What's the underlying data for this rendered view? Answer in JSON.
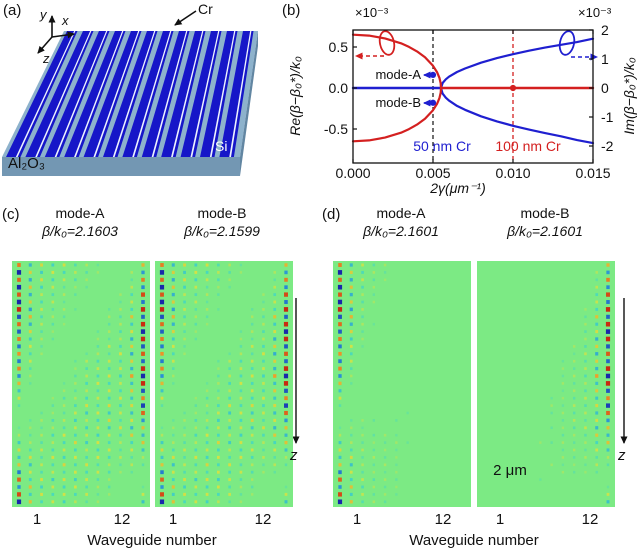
{
  "panel_a": {
    "tag": "(a)",
    "axis_x": "x",
    "axis_y": "y",
    "axis_z": "z",
    "cr": "Cr",
    "si": "Si",
    "substrate": "Al₂O₃",
    "colors": {
      "waveguide": "#1616c8",
      "slab_top": "#8db2cc",
      "slab_front": "#7397b3",
      "slab_side": "#6286a2",
      "ridge_line": "#eef2ff"
    }
  },
  "panel_b": {
    "tag": "(b)",
    "left_exponent": "×10⁻³",
    "right_exponent": "×10⁻³",
    "ylabel_left": "Re(β−β₀*)/k₀",
    "ylabel_right": "Im(β−β₀*)/k₀",
    "xlabel": "2γ(μm⁻¹)",
    "xticks": [
      "0.000",
      "0.005",
      "0.010",
      "0.015"
    ],
    "yticks_left": [
      "0.5",
      "0.0",
      "-0.5"
    ],
    "yticks_right": [
      "2",
      "1",
      "0",
      "-1",
      "-2"
    ],
    "mode_a": "mode-A",
    "mode_b": "mode-B",
    "label_50nm": "50 nm Cr",
    "label_100nm": "100 nm Cr"
  },
  "panel_c": {
    "tag": "(c)",
    "mode_a": "mode-A",
    "beta_a": "β/k₀=2.1603",
    "mode_b": "mode-B",
    "beta_b": "β/k₀=2.1599",
    "tick_1a": "1",
    "tick_12a": "12",
    "tick_1b": "1",
    "tick_12b": "12",
    "xlabel": "Waveguide number",
    "z": "z"
  },
  "panel_d": {
    "tag": "(d)",
    "mode_a": "mode-A",
    "beta_a": "β/k₀=2.1601",
    "mode_b": "mode-B",
    "beta_b": "β/k₀=2.1601",
    "tick_1a": "1",
    "tick_12a": "12",
    "tick_1b": "1",
    "tick_12b": "12",
    "xlabel": "Waveguide number",
    "z": "z",
    "scalebar": "2 μm"
  },
  "chart_data": {
    "type": "line",
    "title": "",
    "xlabel": "2γ(μm⁻¹)",
    "ylabel_left": "Re(β−β₀*)/k₀, units of 10⁻³",
    "ylabel_right": "Im(β−β₀*)/k₀, units of 10⁻³",
    "xlim": [
      0,
      0.015
    ],
    "ylim_left": [
      -0.91,
      0.7
    ],
    "ylim_right": [
      -2.55,
      2.0
    ],
    "grid": false,
    "exceptional_point_x": 0.0055,
    "colors": {
      "re": "#d42020",
      "im": "#1f1fd0"
    },
    "series": [
      {
        "id": "re_up",
        "name": "Re upper branch",
        "axis": "left",
        "color": "#d42020",
        "points": [
          [
            0,
            0.65
          ],
          [
            0.001,
            0.639
          ],
          [
            0.002,
            0.605
          ],
          [
            0.003,
            0.545
          ],
          [
            0.0035,
            0.501
          ],
          [
            0.004,
            0.446
          ],
          [
            0.0045,
            0.374
          ],
          [
            0.005,
            0.271
          ],
          [
            0.00525,
            0.194
          ],
          [
            0.0054,
            0.124
          ],
          [
            0.00548,
            0.056
          ],
          [
            0.0055,
            0
          ]
        ]
      },
      {
        "id": "re_dn",
        "name": "Re lower branch",
        "axis": "left",
        "color": "#d42020",
        "points": [
          [
            0,
            -0.65
          ],
          [
            0.001,
            -0.639
          ],
          [
            0.002,
            -0.605
          ],
          [
            0.003,
            -0.545
          ],
          [
            0.0035,
            -0.501
          ],
          [
            0.004,
            -0.446
          ],
          [
            0.0045,
            -0.374
          ],
          [
            0.005,
            -0.271
          ],
          [
            0.00525,
            -0.194
          ],
          [
            0.0054,
            -0.124
          ],
          [
            0.00548,
            -0.056
          ],
          [
            0.0055,
            0
          ]
        ]
      },
      {
        "id": "re_flat",
        "name": "Re after EP (degenerate, 0)",
        "axis": "left",
        "color": "#d42020",
        "points": [
          [
            0.0055,
            0
          ],
          [
            0.015,
            0
          ]
        ]
      },
      {
        "id": "im_flat",
        "name": "Im before EP (0)",
        "axis": "right",
        "color": "#1f1fd0",
        "points": [
          [
            0,
            0
          ],
          [
            0.0055,
            0
          ]
        ]
      },
      {
        "id": "im_up",
        "name": "Im upper branch",
        "axis": "right",
        "color": "#1f1fd0",
        "points": [
          [
            0.0055,
            0
          ],
          [
            0.0056,
            0.174
          ],
          [
            0.0058,
            0.3
          ],
          [
            0.006,
            0.39
          ],
          [
            0.0065,
            0.551
          ],
          [
            0.007,
            0.674
          ],
          [
            0.008,
            0.873
          ],
          [
            0.009,
            1.031
          ],
          [
            0.01,
            1.166
          ],
          [
            0.011,
            1.285
          ],
          [
            0.012,
            1.392
          ],
          [
            0.013,
            1.491
          ],
          [
            0.014,
            1.583
          ],
          [
            0.015,
            1.7
          ]
        ]
      },
      {
        "id": "im_dn",
        "name": "Im lower branch",
        "axis": "right",
        "color": "#1f1fd0",
        "points": [
          [
            0.0055,
            0
          ],
          [
            0.0056,
            -0.194
          ],
          [
            0.0058,
            -0.335
          ],
          [
            0.006,
            -0.436
          ],
          [
            0.0065,
            -0.616
          ],
          [
            0.007,
            -0.753
          ],
          [
            0.008,
            -0.976
          ],
          [
            0.009,
            -1.152
          ],
          [
            0.01,
            -1.303
          ],
          [
            0.011,
            -1.436
          ],
          [
            0.012,
            -1.556
          ],
          [
            0.013,
            -1.666
          ],
          [
            0.014,
            -1.797
          ],
          [
            0.015,
            -1.9
          ]
        ]
      }
    ],
    "markers": [
      {
        "x": 0.005,
        "y": 0.16,
        "axis": "left",
        "color": "#1f1fd0",
        "label": "mode-A"
      },
      {
        "x": 0.005,
        "y": -0.18,
        "axis": "left",
        "color": "#1f1fd0",
        "label": "mode-B"
      },
      {
        "x": 0.01,
        "y": 0,
        "axis": "left",
        "color": "#d42020",
        "label": ""
      }
    ],
    "vlines": [
      {
        "x": 0.005,
        "style": "dashed",
        "color": "#222222",
        "label": "50 nm Cr"
      },
      {
        "x": 0.01,
        "style": "dashed",
        "color": "#d42020",
        "label": "100 nm Cr"
      }
    ],
    "field_maps": {
      "waveguides": 12,
      "background": "#7cea84",
      "images": [
        {
          "id": "c_modeA",
          "panel": "c",
          "mode": "mode-A",
          "beta_over_k0": "2.1603",
          "profile": "both_edges"
        },
        {
          "id": "c_modeB",
          "panel": "c",
          "mode": "mode-B",
          "beta_over_k0": "2.1599",
          "profile": "both_edges"
        },
        {
          "id": "d_modeA",
          "panel": "d",
          "mode": "mode-A",
          "beta_over_k0": "2.1601",
          "profile": "left_edge"
        },
        {
          "id": "d_modeB",
          "panel": "d",
          "mode": "mode-B",
          "beta_over_k0": "2.1601",
          "profile": "right_edge"
        }
      ]
    }
  }
}
